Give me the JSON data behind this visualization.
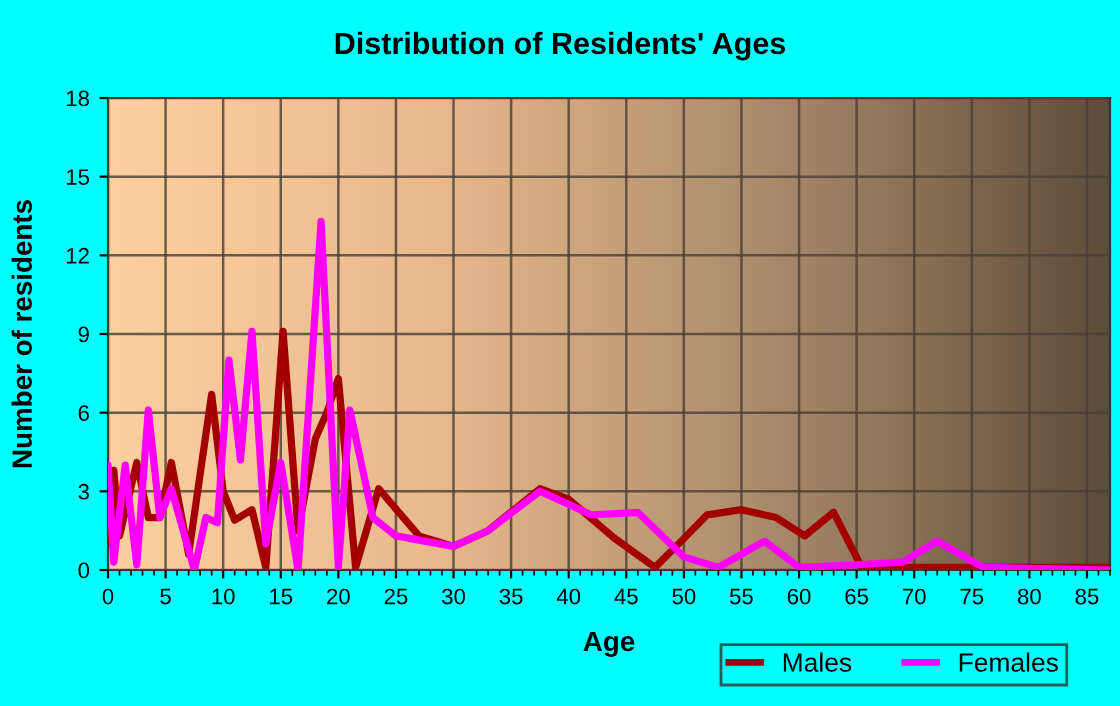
{
  "chart_data": {
    "type": "line",
    "title": "Distribution of Residents' Ages",
    "xlabel": "Age",
    "ylabel": "Number of residents",
    "xlim": [
      0,
      87
    ],
    "ylim": [
      0,
      18
    ],
    "xticks": [
      0,
      5,
      10,
      15,
      20,
      25,
      30,
      35,
      40,
      45,
      50,
      55,
      60,
      65,
      70,
      75,
      80,
      85
    ],
    "yticks": [
      0,
      3,
      6,
      9,
      12,
      15,
      18
    ],
    "grid": true,
    "legend": "bottom right",
    "marker": "none",
    "line_style": "solid",
    "series": [
      {
        "name": "Males",
        "color": "#a50000",
        "x": [
          0,
          0.5,
          1,
          2.5,
          3.5,
          4.5,
          5.5,
          7,
          9,
          10,
          11,
          12.5,
          13.7,
          15.2,
          16.5,
          18,
          19,
          20,
          21.5,
          23.5,
          27,
          30,
          33,
          37.5,
          40,
          44,
          47.5,
          50,
          52,
          55,
          58,
          60.5,
          63,
          65.5,
          70,
          87
        ],
        "values": [
          1,
          3.8,
          1.3,
          4.1,
          2,
          2,
          4.1,
          0.6,
          6.7,
          3,
          1.9,
          2.3,
          0.1,
          9.1,
          1.5,
          5,
          6,
          7.3,
          0.1,
          3.1,
          1.3,
          0.9,
          1.5,
          3.1,
          2.7,
          1.2,
          0.1,
          1.2,
          2.1,
          2.3,
          2,
          1.3,
          2.2,
          0.05,
          0.1,
          0.1
        ]
      },
      {
        "name": "Females",
        "color": "#ff00ff",
        "x": [
          0,
          0.5,
          1.5,
          2.5,
          3.5,
          4.5,
          5.5,
          7.5,
          8.5,
          9.5,
          10.5,
          11.5,
          12.5,
          13.7,
          15,
          16.5,
          18.5,
          20,
          21,
          23,
          25,
          30,
          33,
          37.5,
          42,
          46,
          50,
          53,
          57,
          60,
          65,
          69,
          72,
          76,
          87
        ],
        "values": [
          4,
          0.3,
          4,
          0.2,
          6.1,
          2,
          3.1,
          0,
          2,
          1.8,
          8,
          4.2,
          9.1,
          1,
          4.1,
          0,
          13.3,
          0.1,
          6.1,
          2,
          1.3,
          0.9,
          1.5,
          3,
          2.1,
          2.2,
          0.5,
          0.1,
          1.1,
          0.1,
          0.2,
          0.3,
          1.1,
          0.1,
          0
        ]
      }
    ]
  }
}
